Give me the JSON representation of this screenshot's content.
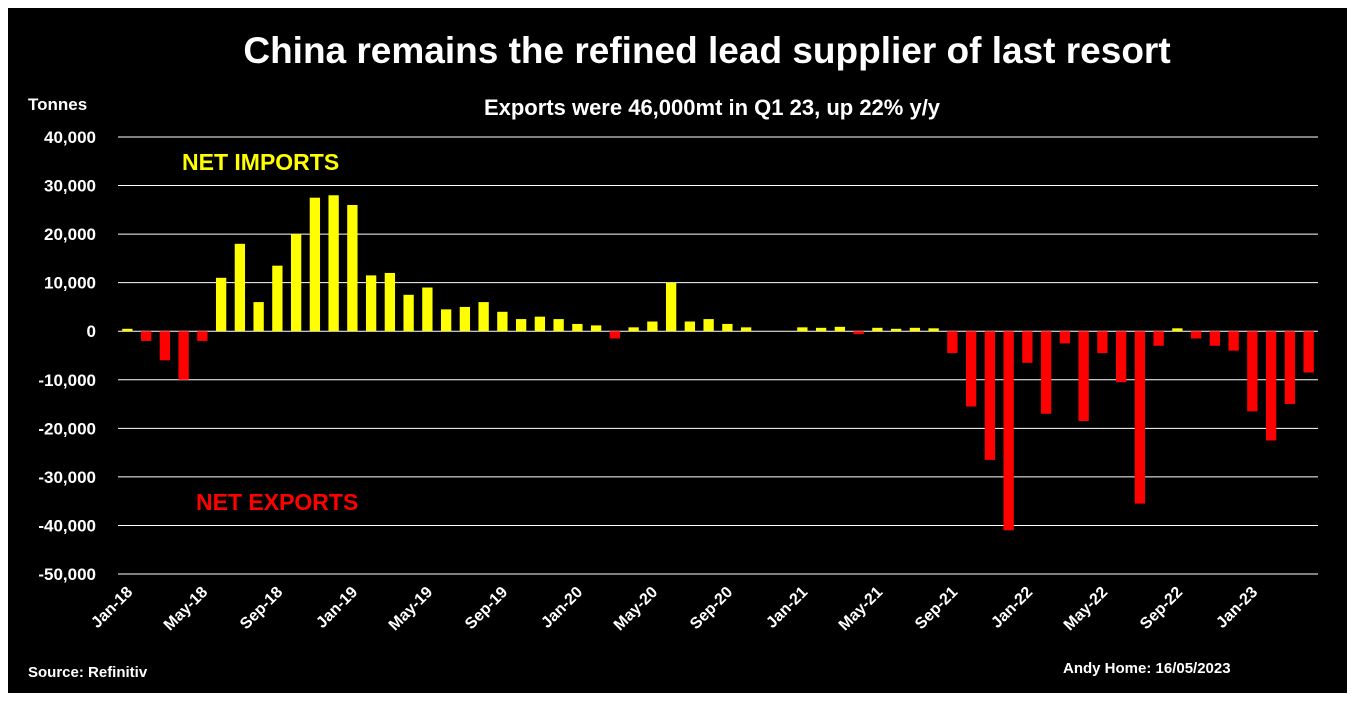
{
  "chart_data": {
    "type": "bar",
    "title": "China remains the refined lead supplier of last resort",
    "subtitle": "Exports were 46,000mt in Q1 23, up 22% y/y",
    "ylabel": "Tonnes",
    "ylim": [
      -50000,
      40000
    ],
    "yticks": [
      40000,
      30000,
      20000,
      10000,
      0,
      -10000,
      -20000,
      -30000,
      -40000,
      -50000
    ],
    "ytick_labels": [
      "40,000",
      "30,000",
      "20,000",
      "10,000",
      "0",
      "-10,000",
      "-20,000",
      "-30,000",
      "-40,000",
      "-50,000"
    ],
    "xtick_labels": [
      "Jan-18",
      "May-18",
      "Sep-18",
      "Jan-19",
      "May-19",
      "Sep-19",
      "Jan-20",
      "May-20",
      "Sep-20",
      "Jan-21",
      "May-21",
      "Sep-21",
      "Jan-22",
      "May-22",
      "Sep-22",
      "Jan-23"
    ],
    "xtick_every": 4,
    "grid": true,
    "colors": {
      "positive": "#ffff00",
      "negative": "#ff0000",
      "background": "#000000",
      "text": "#ffffff",
      "grid": "#ffffff"
    },
    "annotations": [
      {
        "text": "NET IMPORTS",
        "color": "#ffff00"
      },
      {
        "text": "NET EXPORTS",
        "color": "#ff0000"
      }
    ],
    "values": [
      500,
      -2000,
      -6000,
      -10000,
      -2000,
      11000,
      18000,
      6000,
      13500,
      20000,
      27500,
      28000,
      26000,
      11500,
      12000,
      7500,
      9000,
      4500,
      5000,
      6000,
      4000,
      2500,
      3000,
      2500,
      1500,
      1200,
      -1500,
      800,
      2000,
      10000,
      2000,
      2500,
      1500,
      800,
      0,
      0,
      800,
      700,
      900,
      -600,
      700,
      500,
      700,
      600,
      -4500,
      -15500,
      -26500,
      -41000,
      -6500,
      -17000,
      -2500,
      -18500,
      -4500,
      -10500,
      -35500,
      -3000,
      600,
      -1500,
      -3000,
      -4000,
      -16500,
      -22500,
      -15000,
      -8500
    ],
    "footer_left": "Source: Refinitiv",
    "footer_right": "Andy Home: 16/05/2023"
  }
}
